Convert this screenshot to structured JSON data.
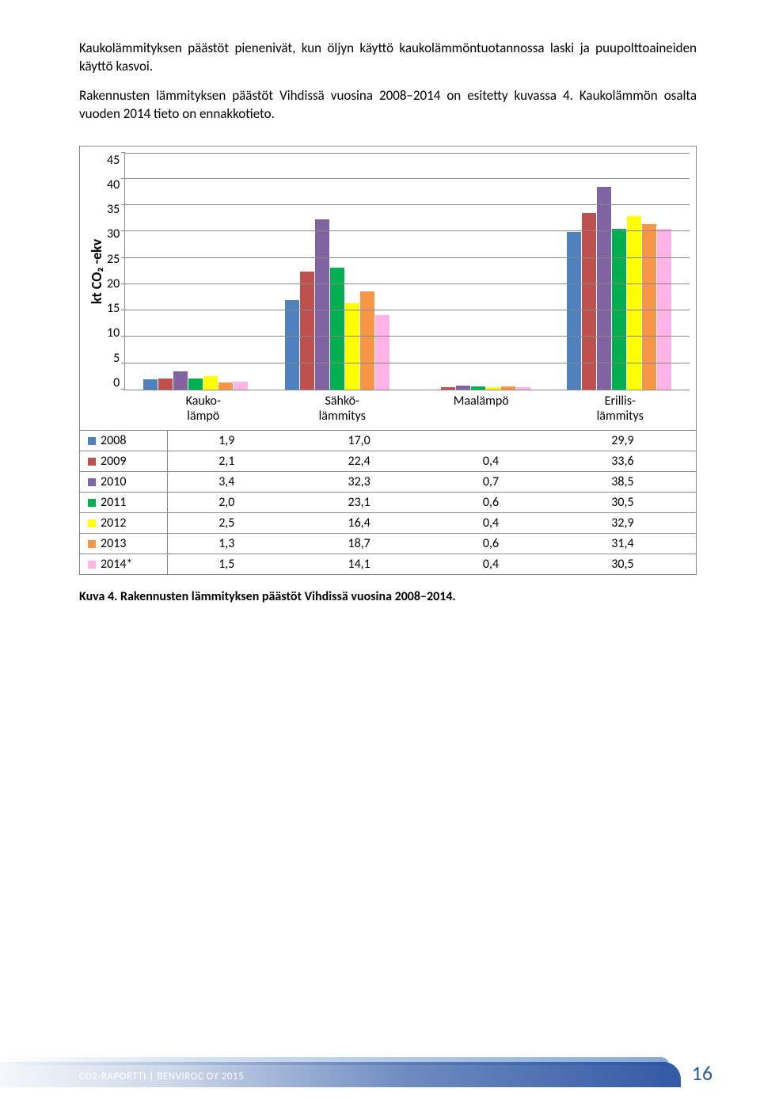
{
  "paragraphs": {
    "p1": "Kaukolämmityksen päästöt pienenivät, kun öljyn käyttö kaukolämmöntuotannossa laski ja puupolttoaineiden käyttö kasvoi.",
    "p2": "Rakennusten lämmityksen päästöt Vihdissä vuosina 2008–2014 on esitetty kuvassa 4. Kaukolämmön osalta vuoden 2014 tieto on ennakkotieto."
  },
  "chart": {
    "type": "bar",
    "ylabel": "kt CO₂ -ekv",
    "ylim_max": 45,
    "ytick_step": 5,
    "grid_color": "#888888",
    "background_color": "#ffffff",
    "categories": [
      "Kauko-\nlämpö",
      "Sähkö-\nlämmitys",
      "Maalämpö",
      "Erillis-\nlämmitys"
    ],
    "series": [
      {
        "year": "2008",
        "color": "#4f81bd",
        "values": [
          "1,9",
          "17,0",
          "",
          "29,9"
        ]
      },
      {
        "year": "2009",
        "color": "#c0504d",
        "values": [
          "2,1",
          "22,4",
          "0,4",
          "33,6"
        ]
      },
      {
        "year": "2010",
        "color": "#8064a2",
        "values": [
          "3,4",
          "32,3",
          "0,7",
          "38,5"
        ]
      },
      {
        "year": "2011",
        "color": "#00b050",
        "values": [
          "2,0",
          "23,1",
          "0,6",
          "30,5"
        ]
      },
      {
        "year": "2012",
        "color": "#ffff00",
        "values": [
          "2,5",
          "16,4",
          "0,4",
          "32,9"
        ]
      },
      {
        "year": "2013",
        "color": "#f79646",
        "values": [
          "1,3",
          "18,7",
          "0,6",
          "31,4"
        ]
      },
      {
        "year": "2014*",
        "color": "#ffb3e6",
        "values": [
          "1,5",
          "14,1",
          "0,4",
          "30,5"
        ]
      }
    ],
    "table_header": [
      "",
      "Kauko-\nlämpö",
      "Sähkö-\nlämmitys",
      "Maalämpö",
      "Erillis-\nlämmitys"
    ]
  },
  "caption": "Kuva 4. Rakennusten lämmityksen päästöt Vihdissä vuosina 2008–2014.",
  "footer": {
    "text": "CO2-RAPORTTI | BENVIROC OY 2015",
    "page": "16"
  }
}
